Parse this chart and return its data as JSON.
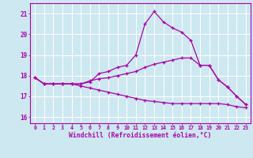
{
  "xlabel": "Windchill (Refroidissement éolien,°C)",
  "bg_color": "#cde8f0",
  "line_color": "#aa00aa",
  "xlim": [
    -0.5,
    23.5
  ],
  "ylim": [
    15.7,
    21.5
  ],
  "yticks": [
    16,
    17,
    18,
    19,
    20,
    21
  ],
  "xticks": [
    0,
    1,
    2,
    3,
    4,
    5,
    6,
    7,
    8,
    9,
    10,
    11,
    12,
    13,
    14,
    15,
    16,
    17,
    18,
    19,
    20,
    21,
    22,
    23
  ],
  "curve1": [
    17.9,
    17.6,
    17.6,
    17.6,
    17.6,
    17.6,
    17.7,
    18.1,
    18.2,
    18.4,
    18.5,
    19.0,
    20.5,
    21.1,
    20.6,
    20.3,
    20.1,
    19.7,
    18.5,
    18.5,
    17.8,
    17.45,
    17.0,
    16.6
  ],
  "curve2": [
    17.9,
    17.6,
    17.6,
    17.6,
    17.6,
    17.6,
    17.75,
    17.85,
    17.9,
    18.0,
    18.1,
    18.2,
    18.4,
    18.55,
    18.65,
    18.75,
    18.85,
    18.85,
    18.5,
    18.5,
    17.8,
    17.45,
    17.0,
    16.6
  ],
  "curve3": [
    17.9,
    17.6,
    17.6,
    17.6,
    17.6,
    17.5,
    17.4,
    17.3,
    17.2,
    17.1,
    17.0,
    16.9,
    16.8,
    16.75,
    16.7,
    16.65,
    16.65,
    16.65,
    16.65,
    16.65,
    16.65,
    16.6,
    16.5,
    16.45
  ]
}
